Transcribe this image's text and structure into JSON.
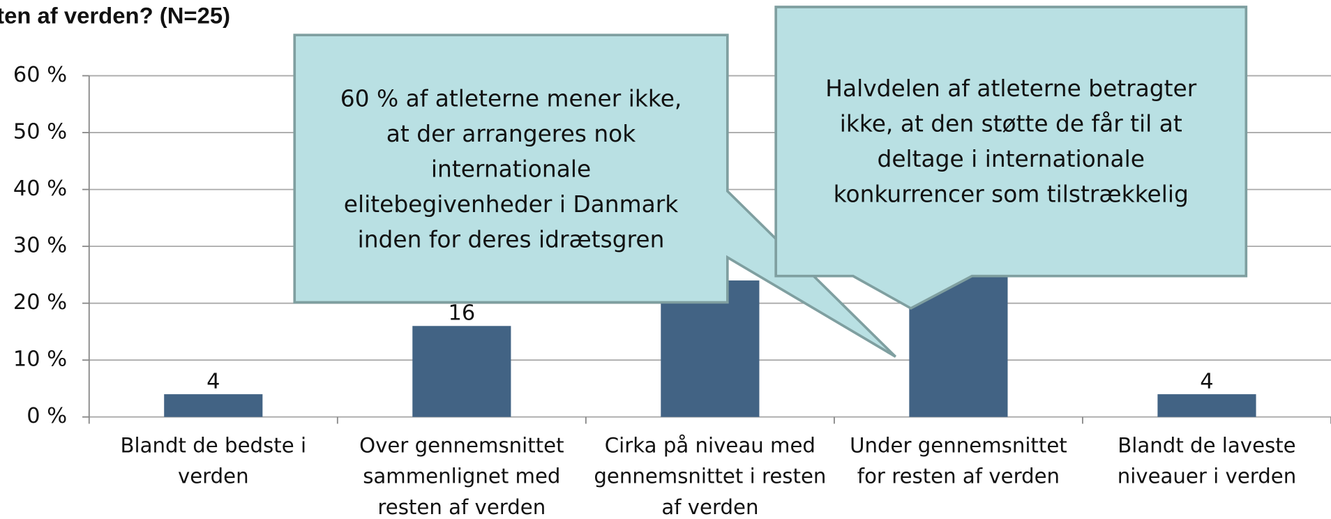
{
  "chart_data": {
    "type": "bar",
    "title": "ten af verden? (N=25)",
    "categories": [
      [
        "Blandt de bedste i",
        "verden"
      ],
      [
        "Over gennemsnittet",
        "sammenlignet med",
        "resten af verden"
      ],
      [
        "Cirka på niveau med",
        "gennemsnittet i resten",
        "af verden"
      ],
      [
        "Under gennemsnittet",
        "for resten af verden"
      ],
      [
        "Blandt de laveste",
        "niveauer i verden"
      ]
    ],
    "values": [
      4,
      16,
      24,
      52,
      4
    ],
    "color": "#426384",
    "ylim": [
      0,
      60
    ],
    "yticks": [
      {
        "value": 0,
        "label": "0 %"
      },
      {
        "value": 10,
        "label": "10 %"
      },
      {
        "value": 20,
        "label": "20 %"
      },
      {
        "value": 30,
        "label": "30 %"
      },
      {
        "value": 40,
        "label": "40 %"
      },
      {
        "value": 50,
        "label": "50 %"
      },
      {
        "value": 60,
        "label": "60 %"
      }
    ],
    "grid": true,
    "annotations": [
      {
        "lines": [
          "60 % af atleterne mener ikke,",
          "at der arrangeres nok",
          "internationale",
          "elitebegivenheder i Danmark",
          "inden for deres idrætsgren"
        ]
      },
      {
        "lines": [
          "Halvdelen af atleterne betragter",
          "ikke, at den støtte de får til at",
          "deltage i internationale",
          "konkurrencer som tilstrækkelig"
        ]
      }
    ]
  }
}
